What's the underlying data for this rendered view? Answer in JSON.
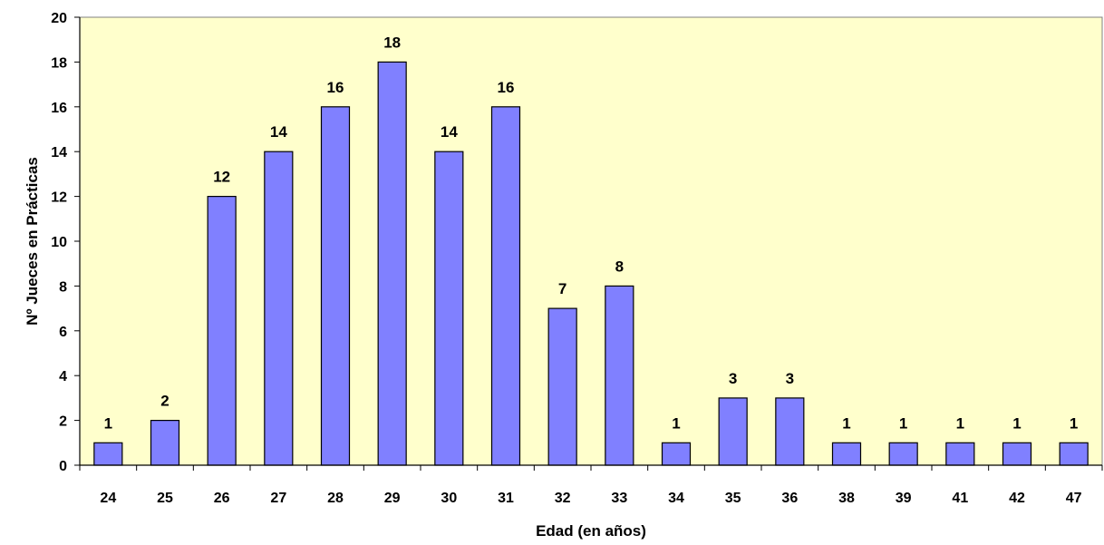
{
  "chart_data": {
    "type": "bar",
    "title": "",
    "xlabel": "Edad (en años)",
    "ylabel": "Nº Jueces en Prácticas",
    "categories": [
      "24",
      "25",
      "26",
      "27",
      "28",
      "29",
      "30",
      "31",
      "32",
      "33",
      "34",
      "35",
      "36",
      "38",
      "39",
      "41",
      "42",
      "47"
    ],
    "values": [
      1,
      2,
      12,
      14,
      16,
      18,
      14,
      16,
      7,
      8,
      1,
      3,
      3,
      1,
      1,
      1,
      1,
      1
    ],
    "ylim": [
      0,
      20
    ],
    "yticks": [
      0,
      2,
      4,
      6,
      8,
      10,
      12,
      14,
      16,
      18,
      20
    ],
    "grid": false,
    "legend": "none",
    "data_labels": true
  },
  "colors": {
    "plot_background": "#ffffcc",
    "bar_fill": "#8080ff",
    "bar_stroke": "#000000",
    "axis": "#000000"
  }
}
